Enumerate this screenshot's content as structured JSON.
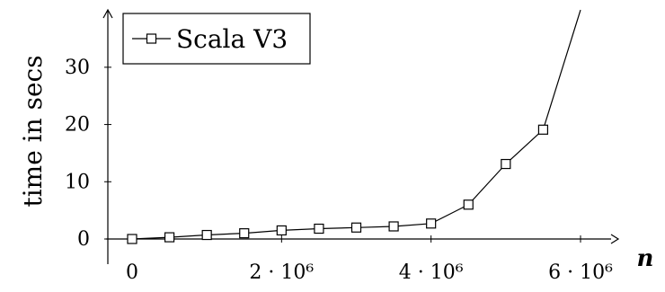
{
  "chart_data": {
    "type": "line",
    "title": "",
    "xlabel": "n",
    "ylabel": "time in secs",
    "xlim": [
      0,
      6000000
    ],
    "ylim": [
      0,
      35
    ],
    "x_ticks": [
      "0",
      "2 · 10⁶",
      "4 · 10⁶",
      "6 · 10⁶"
    ],
    "y_ticks": [
      "0",
      "10",
      "20",
      "30"
    ],
    "legend_position": "top-left",
    "grid": false,
    "series": [
      {
        "name": "Scala V3",
        "marker": "square",
        "color": "#000000",
        "x": [
          0,
          500000,
          1000000,
          1500000,
          2000000,
          2500000,
          3000000,
          3500000,
          4000000,
          4500000,
          5000000,
          5500000,
          6000000
        ],
        "y": [
          0.0,
          0.3,
          0.7,
          1.0,
          1.5,
          1.8,
          2.0,
          2.2,
          2.7,
          6.0,
          13.1,
          19.1,
          40.0
        ]
      }
    ]
  }
}
